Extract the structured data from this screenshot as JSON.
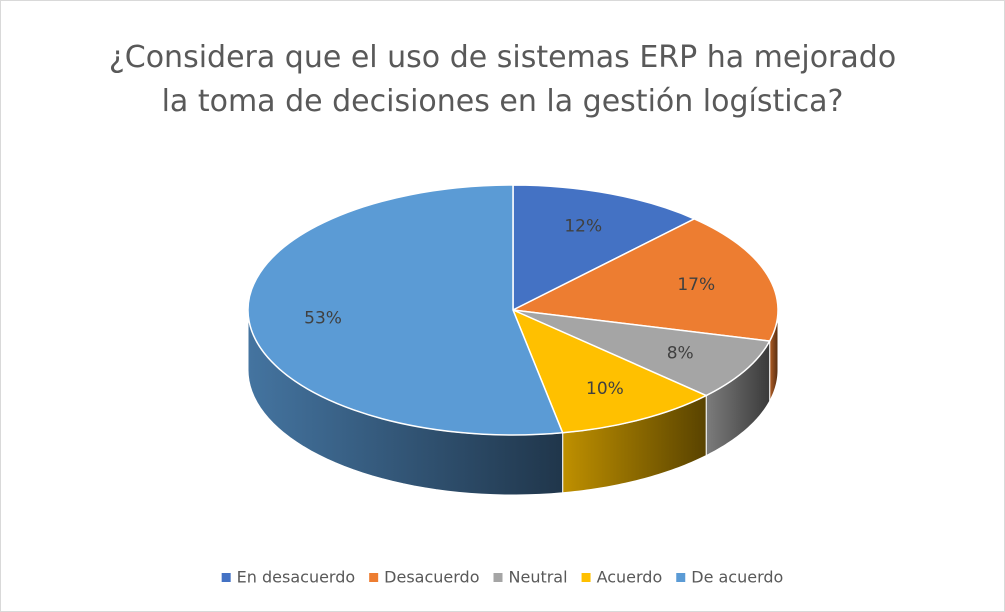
{
  "chart_data": {
    "type": "pie",
    "title": "¿Considera que el uso de sistemas ERP ha mejorado la toma de decisiones en la gestión logística?",
    "categories": [
      "En desacuerdo",
      "Desacuerdo",
      "Neutral",
      "Acuerdo",
      "De acuerdo"
    ],
    "values": [
      12,
      17,
      8,
      10,
      53
    ],
    "value_labels": [
      "12%",
      "17%",
      "8%",
      "10%",
      "53%"
    ],
    "colors": [
      "#4472c4",
      "#ed7d31",
      "#a5a5a5",
      "#ffc000",
      "#5b9bd5"
    ],
    "legend": "bottom"
  }
}
